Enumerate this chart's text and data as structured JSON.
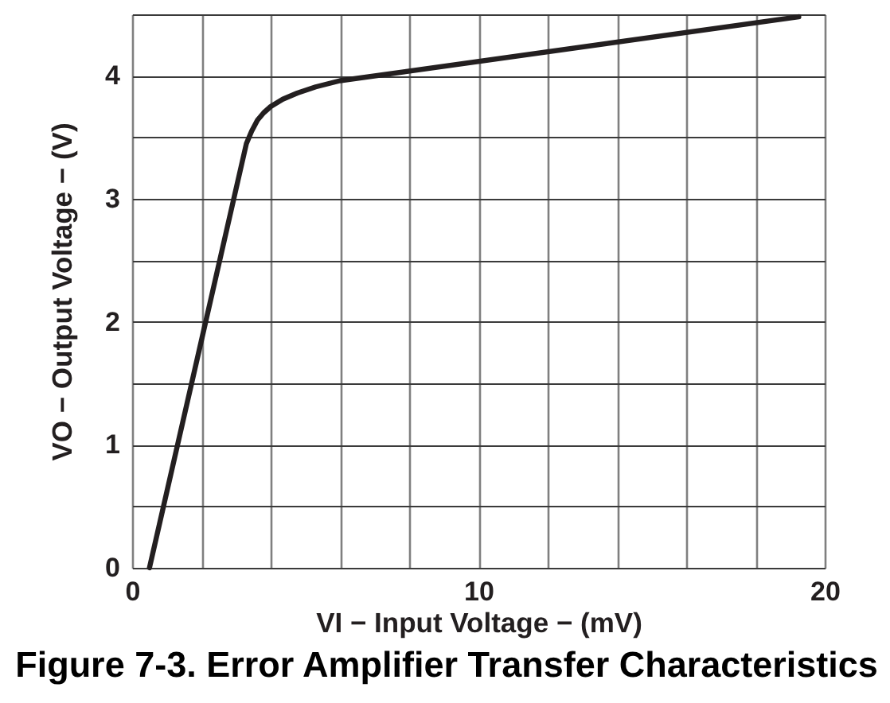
{
  "chart_data": {
    "type": "line",
    "title": "Figure 7-3. Error Amplifier Transfer Characteristics",
    "xlabel": "VI − Input Voltage − (mV)",
    "ylabel": "VO − Output Voltage − (V)",
    "series": [
      {
        "color": "#231f20",
        "x": [
          0.5,
          3.3,
          3.45,
          3.62,
          3.8,
          4.0,
          4.35,
          4.77,
          5.3,
          6,
          19.25
        ],
        "values": [
          0,
          3.45,
          3.55,
          3.64,
          3.7,
          3.75,
          3.81,
          3.86,
          3.91,
          3.96,
          4.48
        ]
      }
    ],
    "xlim": [
      0,
      20
    ],
    "ylim": [
      0,
      4.5
    ],
    "xticks": [
      0,
      {
        "value": 2,
        "label": null
      },
      {
        "value": 4,
        "label": null
      },
      {
        "value": 6,
        "label": null
      },
      {
        "value": 8,
        "label": null
      },
      10,
      {
        "value": 12,
        "label": null
      },
      {
        "value": 14,
        "label": null
      },
      {
        "value": 16,
        "label": null
      },
      {
        "value": 18,
        "label": null
      },
      20
    ],
    "yticks": [
      0,
      {
        "value": 0.5,
        "label": null
      },
      1,
      {
        "value": 1.5,
        "label": null
      },
      2,
      {
        "value": 2.5,
        "label": null
      },
      3,
      {
        "value": 3.5,
        "label": null
      },
      4,
      {
        "value": 4.5,
        "label": null
      }
    ],
    "grid": true,
    "line_style": "solid"
  }
}
